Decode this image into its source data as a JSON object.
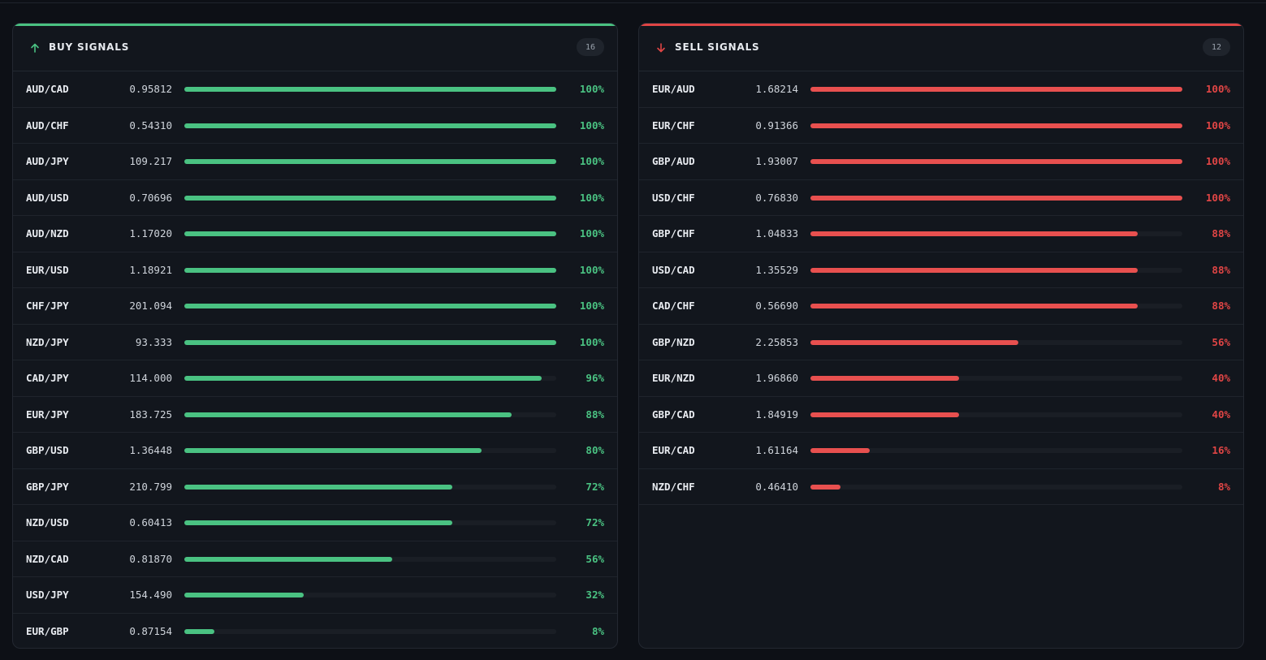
{
  "colors": {
    "buy_accent": "#4ac282",
    "sell_accent": "#e04545",
    "background": "#0d1016",
    "panel": "#12161d"
  },
  "buy": {
    "title": "BUY SIGNALS",
    "icon": "arrow-up-icon",
    "count": "16",
    "rows": [
      {
        "pair": "AUD/CAD",
        "price": "0.95812",
        "pct_label": "100%",
        "pct": 100
      },
      {
        "pair": "AUD/CHF",
        "price": "0.54310",
        "pct_label": "100%",
        "pct": 100
      },
      {
        "pair": "AUD/JPY",
        "price": "109.217",
        "pct_label": "100%",
        "pct": 100
      },
      {
        "pair": "AUD/USD",
        "price": "0.70696",
        "pct_label": "100%",
        "pct": 100
      },
      {
        "pair": "AUD/NZD",
        "price": "1.17020",
        "pct_label": "100%",
        "pct": 100
      },
      {
        "pair": "EUR/USD",
        "price": "1.18921",
        "pct_label": "100%",
        "pct": 100
      },
      {
        "pair": "CHF/JPY",
        "price": "201.094",
        "pct_label": "100%",
        "pct": 100
      },
      {
        "pair": "NZD/JPY",
        "price": "93.333",
        "pct_label": "100%",
        "pct": 100
      },
      {
        "pair": "CAD/JPY",
        "price": "114.000",
        "pct_label": "96%",
        "pct": 96
      },
      {
        "pair": "EUR/JPY",
        "price": "183.725",
        "pct_label": "88%",
        "pct": 88
      },
      {
        "pair": "GBP/USD",
        "price": "1.36448",
        "pct_label": "80%",
        "pct": 80
      },
      {
        "pair": "GBP/JPY",
        "price": "210.799",
        "pct_label": "72%",
        "pct": 72
      },
      {
        "pair": "NZD/USD",
        "price": "0.60413",
        "pct_label": "72%",
        "pct": 72
      },
      {
        "pair": "NZD/CAD",
        "price": "0.81870",
        "pct_label": "56%",
        "pct": 56
      },
      {
        "pair": "USD/JPY",
        "price": "154.490",
        "pct_label": "32%",
        "pct": 32
      },
      {
        "pair": "EUR/GBP",
        "price": "0.87154",
        "pct_label": "8%",
        "pct": 8
      }
    ]
  },
  "sell": {
    "title": "SELL SIGNALS",
    "icon": "arrow-down-icon",
    "count": "12",
    "rows": [
      {
        "pair": "EUR/AUD",
        "price": "1.68214",
        "pct_label": "100%",
        "pct": 100
      },
      {
        "pair": "EUR/CHF",
        "price": "0.91366",
        "pct_label": "100%",
        "pct": 100
      },
      {
        "pair": "GBP/AUD",
        "price": "1.93007",
        "pct_label": "100%",
        "pct": 100
      },
      {
        "pair": "USD/CHF",
        "price": "0.76830",
        "pct_label": "100%",
        "pct": 100
      },
      {
        "pair": "GBP/CHF",
        "price": "1.04833",
        "pct_label": "88%",
        "pct": 88
      },
      {
        "pair": "USD/CAD",
        "price": "1.35529",
        "pct_label": "88%",
        "pct": 88
      },
      {
        "pair": "CAD/CHF",
        "price": "0.56690",
        "pct_label": "88%",
        "pct": 88
      },
      {
        "pair": "GBP/NZD",
        "price": "2.25853",
        "pct_label": "56%",
        "pct": 56
      },
      {
        "pair": "EUR/NZD",
        "price": "1.96860",
        "pct_label": "40%",
        "pct": 40
      },
      {
        "pair": "GBP/CAD",
        "price": "1.84919",
        "pct_label": "40%",
        "pct": 40
      },
      {
        "pair": "EUR/CAD",
        "price": "1.61164",
        "pct_label": "16%",
        "pct": 16
      },
      {
        "pair": "NZD/CHF",
        "price": "0.46410",
        "pct_label": "8%",
        "pct": 8
      }
    ]
  }
}
